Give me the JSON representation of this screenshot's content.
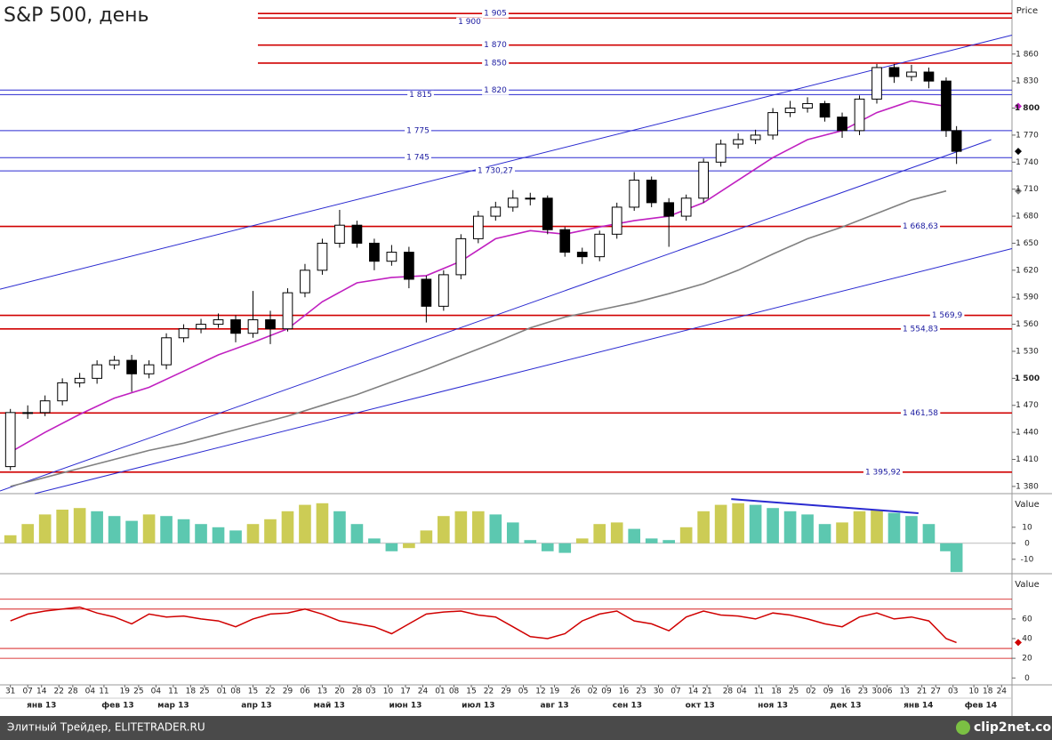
{
  "title": "S&P 500, день",
  "footer": {
    "source": "Элитный Трейдер, ELITETRADER.RU",
    "logo": "clip2net.com"
  },
  "chart_data": [
    {
      "type": "candlestick",
      "y_label": "Price",
      "xlim": [
        -3,
        289
      ],
      "ylim": [
        1372,
        1920
      ],
      "yticks": [
        {
          "value": 1380,
          "label": "1 380"
        },
        {
          "value": 1410,
          "label": "1 410"
        },
        {
          "value": 1440,
          "label": "1 440"
        },
        {
          "value": 1470,
          "label": "1 470"
        },
        {
          "value": 1500,
          "label": "1 500"
        },
        {
          "value": 1530,
          "label": "1 530"
        },
        {
          "value": 1560,
          "label": "1 560"
        },
        {
          "value": 1590,
          "label": "1 590"
        },
        {
          "value": 1620,
          "label": "1 620"
        },
        {
          "value": 1650,
          "label": "1 650"
        },
        {
          "value": 1680,
          "label": "1 680"
        },
        {
          "value": 1710,
          "label": "1 710"
        },
        {
          "value": 1740,
          "label": "1 740"
        },
        {
          "value": 1770,
          "label": "1 770"
        },
        {
          "value": 1800,
          "label": "1 800"
        },
        {
          "value": 1830,
          "label": "1 830"
        },
        {
          "value": 1860,
          "label": "1 860"
        }
      ],
      "xticks": [
        {
          "value": 0,
          "label": "31"
        },
        {
          "value": 5,
          "label": "07"
        },
        {
          "value": 9,
          "label": "14"
        },
        {
          "value": 14,
          "label": "22"
        },
        {
          "value": 18,
          "label": "28"
        },
        {
          "value": 23,
          "label": "04"
        },
        {
          "value": 27,
          "label": "11"
        },
        {
          "value": 33,
          "label": "19"
        },
        {
          "value": 37,
          "label": "25"
        },
        {
          "value": 42,
          "label": "04"
        },
        {
          "value": 47,
          "label": "11"
        },
        {
          "value": 52,
          "label": "18"
        },
        {
          "value": 56,
          "label": "25"
        },
        {
          "value": 61,
          "label": "01"
        },
        {
          "value": 65,
          "label": "08"
        },
        {
          "value": 70,
          "label": "15"
        },
        {
          "value": 75,
          "label": "22"
        },
        {
          "value": 80,
          "label": "29"
        },
        {
          "value": 85,
          "label": "06"
        },
        {
          "value": 90,
          "label": "13"
        },
        {
          "value": 95,
          "label": "20"
        },
        {
          "value": 100,
          "label": "28"
        },
        {
          "value": 104,
          "label": "03"
        },
        {
          "value": 109,
          "label": "10"
        },
        {
          "value": 114,
          "label": "17"
        },
        {
          "value": 119,
          "label": "24"
        },
        {
          "value": 124,
          "label": "01"
        },
        {
          "value": 128,
          "label": "08"
        },
        {
          "value": 133,
          "label": "15"
        },
        {
          "value": 138,
          "label": "22"
        },
        {
          "value": 143,
          "label": "29"
        },
        {
          "value": 148,
          "label": "05"
        },
        {
          "value": 153,
          "label": "12"
        },
        {
          "value": 157,
          "label": "19"
        },
        {
          "value": 163,
          "label": "26"
        },
        {
          "value": 168,
          "label": "02"
        },
        {
          "value": 172,
          "label": "09"
        },
        {
          "value": 177,
          "label": "16"
        },
        {
          "value": 182,
          "label": "23"
        },
        {
          "value": 187,
          "label": "30"
        },
        {
          "value": 192,
          "label": "07"
        },
        {
          "value": 197,
          "label": "14"
        },
        {
          "value": 201,
          "label": "21"
        },
        {
          "value": 207,
          "label": "28"
        },
        {
          "value": 211,
          "label": "04"
        },
        {
          "value": 216,
          "label": "11"
        },
        {
          "value": 221,
          "label": "18"
        },
        {
          "value": 226,
          "label": "25"
        },
        {
          "value": 231,
          "label": "02"
        },
        {
          "value": 236,
          "label": "09"
        },
        {
          "value": 241,
          "label": "16"
        },
        {
          "value": 246,
          "label": "23"
        },
        {
          "value": 250,
          "label": "30"
        },
        {
          "value": 253,
          "label": "06"
        },
        {
          "value": 258,
          "label": "13"
        },
        {
          "value": 263,
          "label": "21"
        },
        {
          "value": 267,
          "label": "27"
        },
        {
          "value": 272,
          "label": "03"
        },
        {
          "value": 278,
          "label": "10"
        },
        {
          "value": 282,
          "label": "18"
        },
        {
          "value": 286,
          "label": "24"
        }
      ],
      "month_ticks": [
        {
          "value": 9,
          "label": "янв 13"
        },
        {
          "value": 31,
          "label": "фев 13"
        },
        {
          "value": 47,
          "label": "мар 13"
        },
        {
          "value": 71,
          "label": "апр 13"
        },
        {
          "value": 92,
          "label": "май 13"
        },
        {
          "value": 114,
          "label": "июн 13"
        },
        {
          "value": 135,
          "label": "июл 13"
        },
        {
          "value": 157,
          "label": "авг 13"
        },
        {
          "value": 178,
          "label": "сен 13"
        },
        {
          "value": 199,
          "label": "окт 13"
        },
        {
          "value": 220,
          "label": "ноя 13"
        },
        {
          "value": 241,
          "label": "дек 13"
        },
        {
          "value": 262,
          "label": "янв 14"
        },
        {
          "value": 280,
          "label": "фев 14"
        }
      ],
      "x": [
        0,
        5,
        10,
        15,
        20,
        25,
        30,
        35,
        40,
        45,
        50,
        55,
        60,
        65,
        70,
        75,
        80,
        85,
        90,
        95,
        100,
        105,
        110,
        115,
        120,
        125,
        130,
        135,
        140,
        145,
        150,
        155,
        160,
        165,
        170,
        175,
        180,
        185,
        190,
        195,
        200,
        205,
        210,
        215,
        220,
        225,
        230,
        235,
        240,
        245,
        250,
        255,
        260,
        265,
        270,
        273
      ],
      "open": [
        1402,
        1462,
        1462,
        1475,
        1495,
        1500,
        1515,
        1520,
        1505,
        1515,
        1545,
        1555,
        1560,
        1565,
        1550,
        1565,
        1555,
        1595,
        1620,
        1650,
        1670,
        1650,
        1630,
        1640,
        1610,
        1580,
        1615,
        1655,
        1680,
        1690,
        1700,
        1700,
        1665,
        1640,
        1635,
        1660,
        1690,
        1720,
        1695,
        1680,
        1700,
        1740,
        1760,
        1765,
        1770,
        1795,
        1800,
        1805,
        1790,
        1775,
        1810,
        1845,
        1835,
        1840,
        1830,
        1775
      ],
      "high": [
        1466,
        1470,
        1481,
        1500,
        1506,
        1520,
        1525,
        1526,
        1520,
        1550,
        1560,
        1566,
        1572,
        1570,
        1597,
        1575,
        1600,
        1627,
        1655,
        1687,
        1675,
        1655,
        1648,
        1646,
        1614,
        1620,
        1660,
        1686,
        1696,
        1709,
        1706,
        1703,
        1668,
        1645,
        1664,
        1695,
        1729,
        1724,
        1700,
        1704,
        1744,
        1765,
        1772,
        1776,
        1800,
        1808,
        1812,
        1808,
        1795,
        1814,
        1849,
        1849,
        1848,
        1845,
        1834,
        1780
      ],
      "low": [
        1398,
        1455,
        1458,
        1470,
        1490,
        1494,
        1510,
        1485,
        1500,
        1510,
        1540,
        1550,
        1556,
        1540,
        1545,
        1538,
        1552,
        1590,
        1615,
        1645,
        1645,
        1620,
        1625,
        1600,
        1562,
        1575,
        1610,
        1650,
        1675,
        1685,
        1692,
        1660,
        1635,
        1627,
        1630,
        1655,
        1686,
        1690,
        1646,
        1675,
        1695,
        1735,
        1755,
        1760,
        1765,
        1790,
        1795,
        1785,
        1767,
        1770,
        1805,
        1828,
        1830,
        1822,
        1768,
        1738
      ],
      "close": [
        1462,
        1462,
        1475,
        1495,
        1500,
        1515,
        1520,
        1505,
        1515,
        1545,
        1555,
        1560,
        1565,
        1550,
        1565,
        1555,
        1595,
        1620,
        1650,
        1670,
        1650,
        1630,
        1640,
        1610,
        1580,
        1615,
        1655,
        1680,
        1690,
        1700,
        1700,
        1665,
        1640,
        1635,
        1660,
        1690,
        1720,
        1695,
        1680,
        1700,
        1740,
        1760,
        1765,
        1770,
        1795,
        1800,
        1805,
        1790,
        1775,
        1810,
        1845,
        1835,
        1840,
        1830,
        1775,
        1752
      ],
      "lines": [
        {
          "color": "#c020c0",
          "x": [
            0,
            10,
            20,
            30,
            40,
            50,
            60,
            70,
            80,
            90,
            100,
            110,
            120,
            130,
            140,
            150,
            160,
            170,
            180,
            190,
            200,
            210,
            220,
            230,
            240,
            250,
            260,
            270
          ],
          "values": [
            1418,
            1440,
            1460,
            1478,
            1490,
            1508,
            1526,
            1540,
            1555,
            1585,
            1606,
            1612,
            1614,
            1630,
            1655,
            1664,
            1660,
            1668,
            1675,
            1680,
            1695,
            1720,
            1745,
            1765,
            1775,
            1795,
            1808,
            1802
          ]
        },
        {
          "color": "#808080",
          "x": [
            0,
            10,
            20,
            30,
            40,
            50,
            60,
            70,
            80,
            90,
            100,
            110,
            120,
            130,
            140,
            150,
            160,
            170,
            180,
            190,
            200,
            210,
            220,
            230,
            240,
            250,
            260,
            270
          ],
          "values": [
            1380,
            1390,
            1400,
            1410,
            1420,
            1428,
            1438,
            1448,
            1458,
            1470,
            1482,
            1496,
            1510,
            1525,
            1540,
            1556,
            1568,
            1576,
            1584,
            1594,
            1605,
            1620,
            1638,
            1655,
            1668,
            1683,
            1698,
            1708
          ]
        }
      ],
      "trendlines": [
        {
          "color": "#2a2ad0",
          "x": [
            -3,
            289
          ],
          "values": [
            1599,
            1881
          ]
        },
        {
          "color": "#2a2ad0",
          "x": [
            -3,
            283
          ],
          "values": [
            1375,
            1765
          ]
        },
        {
          "color": "#2a2ad0",
          "x": [
            7,
            289
          ],
          "values": [
            1372,
            1644
          ]
        }
      ],
      "levels": [
        {
          "value": 1905,
          "label": "1 905",
          "color": "#d00000"
        },
        {
          "value": 1900,
          "label": "1 900",
          "color": "#d00000"
        },
        {
          "value": 1870,
          "label": "1 870",
          "color": "#d00000"
        },
        {
          "value": 1850,
          "label": "1 850",
          "color": "#d00000"
        },
        {
          "value": 1820,
          "label": "1 820",
          "color": "#2a2ad0"
        },
        {
          "value": 1815,
          "label": "1 815",
          "color": "#2a2ad0"
        },
        {
          "value": 1775,
          "label": "1 775",
          "color": "#2a2ad0"
        },
        {
          "value": 1745,
          "label": "1 745",
          "color": "#2a2ad0"
        },
        {
          "value": 1730.27,
          "label": "1 730,27",
          "color": "#2a2ad0"
        },
        {
          "value": 1668.63,
          "label": "1 668,63",
          "color": "#d00000"
        },
        {
          "value": 1569.9,
          "label": "1 569,9",
          "color": "#d00000"
        },
        {
          "value": 1554.83,
          "label": "1 554,83",
          "color": "#d00000"
        },
        {
          "value": 1461.58,
          "label": "1 461,58",
          "color": "#d00000"
        },
        {
          "value": 1395.92,
          "label": "1 395,92",
          "color": "#d00000"
        }
      ]
    },
    {
      "type": "bar",
      "y_label": "Value",
      "ylim": [
        -19,
        31
      ],
      "yticks": [
        10,
        0,
        -10
      ],
      "up_color": "#cccc55",
      "down_color": "#5cc8b0",
      "x": [
        0,
        5,
        10,
        15,
        20,
        25,
        30,
        35,
        40,
        45,
        50,
        55,
        60,
        65,
        70,
        75,
        80,
        85,
        90,
        95,
        100,
        105,
        110,
        115,
        120,
        125,
        130,
        135,
        140,
        145,
        150,
        155,
        160,
        165,
        170,
        175,
        180,
        185,
        190,
        195,
        200,
        205,
        210,
        215,
        220,
        225,
        230,
        235,
        240,
        245,
        250,
        255,
        260,
        265,
        270,
        273
      ],
      "values": [
        5,
        12,
        18,
        21,
        22,
        20,
        17,
        14,
        18,
        17,
        15,
        12,
        10,
        8,
        12,
        15,
        20,
        24,
        25,
        20,
        12,
        3,
        -5,
        -3,
        8,
        17,
        20,
        20,
        18,
        13,
        2,
        -5,
        -6,
        3,
        12,
        13,
        9,
        3,
        2,
        10,
        20,
        24,
        25,
        24,
        22,
        20,
        18,
        12,
        13,
        20,
        21,
        19,
        17,
        12,
        -5,
        -18
      ],
      "trendlines": [
        {
          "color": "#2a2ad0",
          "x": [
            208,
            262
          ],
          "values": [
            27.6,
            18.8
          ]
        }
      ]
    },
    {
      "type": "line",
      "y_label": "Value",
      "ylim": [
        -7,
        106
      ],
      "yticks": [
        60,
        40,
        20,
        0
      ],
      "color": "#d00000",
      "levels": [
        80,
        70,
        30,
        20
      ],
      "x": [
        0,
        5,
        10,
        15,
        20,
        25,
        30,
        35,
        40,
        45,
        50,
        55,
        60,
        65,
        70,
        75,
        80,
        85,
        90,
        95,
        100,
        105,
        110,
        115,
        120,
        125,
        130,
        135,
        140,
        145,
        150,
        155,
        160,
        165,
        170,
        175,
        180,
        185,
        190,
        195,
        200,
        205,
        210,
        215,
        220,
        225,
        230,
        235,
        240,
        245,
        250,
        255,
        260,
        265,
        270,
        273
      ],
      "values": [
        58,
        65,
        68,
        70,
        72,
        66,
        62,
        55,
        65,
        62,
        63,
        60,
        58,
        52,
        60,
        65,
        66,
        70,
        65,
        58,
        55,
        52,
        45,
        55,
        65,
        67,
        68,
        64,
        62,
        52,
        42,
        40,
        45,
        58,
        65,
        68,
        58,
        55,
        48,
        62,
        68,
        64,
        63,
        60,
        66,
        64,
        60,
        55,
        52,
        62,
        66,
        60,
        62,
        58,
        40,
        36
      ]
    }
  ]
}
